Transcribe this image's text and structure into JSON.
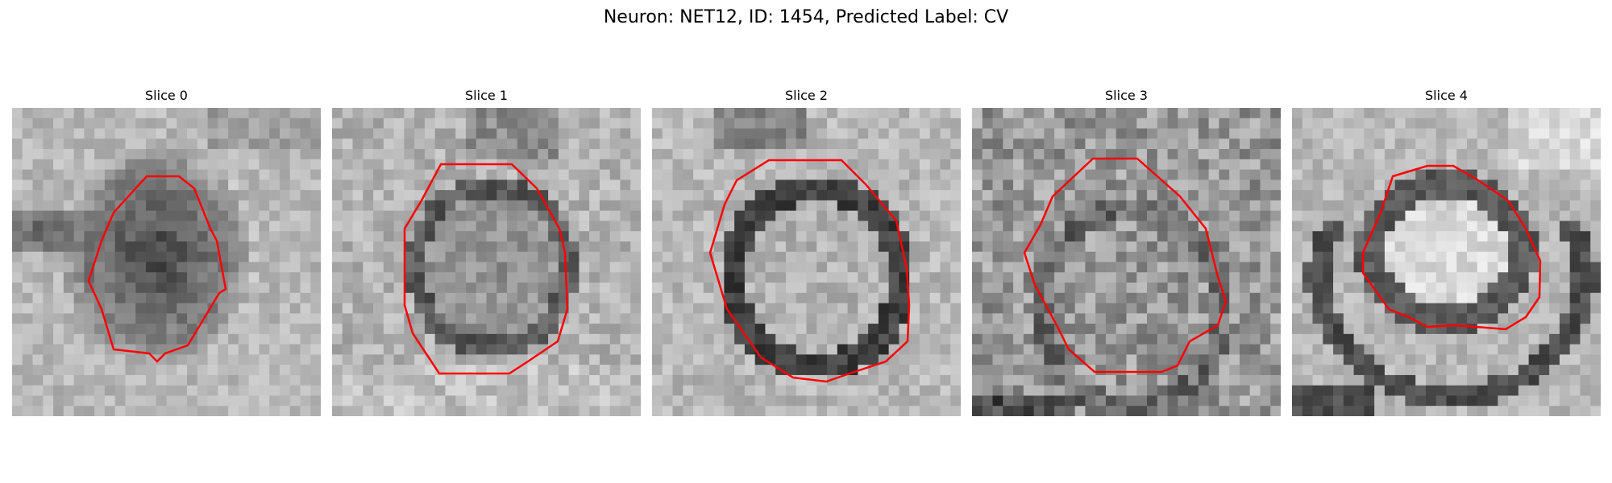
{
  "figure": {
    "title": "Neuron: NET12, ID: 1454, Predicted Label: CV"
  },
  "panels": [
    {
      "title": "Slice 0"
    },
    {
      "title": "Slice 1"
    },
    {
      "title": "Slice 2"
    },
    {
      "title": "Slice 3"
    },
    {
      "title": "Slice 4"
    }
  ],
  "colors": {
    "contour": "#ff0000",
    "background": "#ffffff"
  }
}
